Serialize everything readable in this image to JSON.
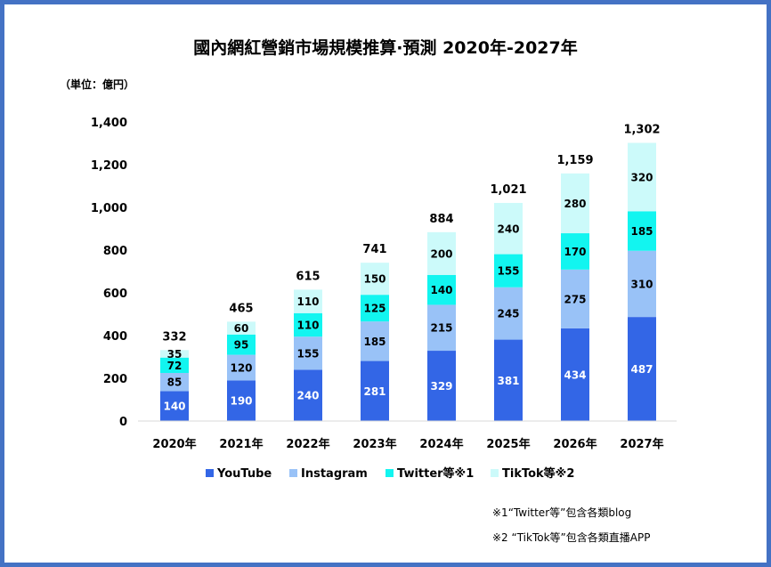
{
  "chart_data": {
    "type": "bar",
    "stacked": true,
    "title": "國內網紅營銷市場規模推算·預測 2020年-2027年",
    "unit_label": "（単位：億円）",
    "categories": [
      "2020年",
      "2021年",
      "2022年",
      "2023年",
      "2024年",
      "2025年",
      "2026年",
      "2027年"
    ],
    "series": [
      {
        "name": "YouTube",
        "color": "#3366E6",
        "label_color": "#ffffff",
        "values": [
          140,
          190,
          240,
          281,
          329,
          381,
          434,
          487
        ]
      },
      {
        "name": "Instagram",
        "color": "#99C2F7",
        "label_color": "#000000",
        "values": [
          85,
          120,
          155,
          185,
          215,
          245,
          275,
          310
        ]
      },
      {
        "name": "Twitter等※1",
        "color": "#12F5F0",
        "label_color": "#000000",
        "values": [
          72,
          95,
          110,
          125,
          140,
          155,
          170,
          185
        ]
      },
      {
        "name": "TikTok等※2",
        "color": "#CCFAFA",
        "label_color": "#000000",
        "values": [
          35,
          60,
          110,
          150,
          200,
          240,
          280,
          320
        ]
      }
    ],
    "totals": [
      "332",
      "465",
      "615",
      "741",
      "884",
      "1,021",
      "1,159",
      "1,302"
    ],
    "yticks": [
      0,
      200,
      400,
      600,
      800,
      1000,
      1200,
      1400
    ],
    "ytick_labels": [
      "0",
      "200",
      "400",
      "600",
      "800",
      "1,000",
      "1,200",
      "1,400"
    ],
    "ylim": [
      0,
      1400
    ],
    "legend_position": "bottom",
    "grid": false,
    "notes": [
      "※1“Twitter等”包含各類blog",
      "※2 “TikTok等”包含各類直播APP"
    ]
  }
}
